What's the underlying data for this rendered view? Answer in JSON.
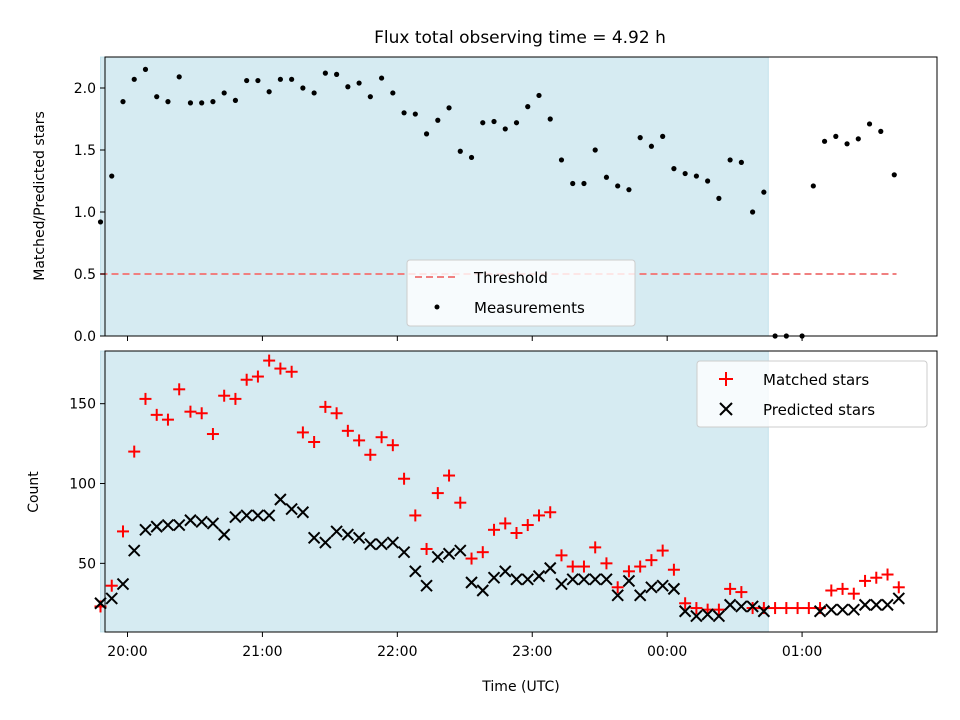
{
  "chart_data": [
    {
      "type": "scatter",
      "title": "Flux total observing time = 4.92 h",
      "xlabel": "",
      "ylabel": "Matched/Predicted stars",
      "xlim": [
        "19:50",
        "02:00"
      ],
      "ylim": [
        0,
        2.25
      ],
      "yticks": [
        "0.0",
        "0.5",
        "1.0",
        "1.5",
        "2.0"
      ],
      "shaded_range": [
        "19:48",
        "00:45"
      ],
      "legend": "lower-center",
      "threshold": {
        "name": "Threshold",
        "value": 0.5,
        "x": [
          "19:48",
          "01:42"
        ],
        "color": "#f08080"
      },
      "series": [
        {
          "name": "Measurements",
          "color": "#000000",
          "points": [
            [
              "19:48",
              0.92
            ],
            [
              "19:53",
              1.29
            ],
            [
              "19:58",
              1.89
            ],
            [
              "20:03",
              2.07
            ],
            [
              "20:08",
              2.15
            ],
            [
              "20:13",
              1.93
            ],
            [
              "20:18",
              1.89
            ],
            [
              "20:23",
              2.09
            ],
            [
              "20:28",
              1.88
            ],
            [
              "20:33",
              1.88
            ],
            [
              "20:38",
              1.89
            ],
            [
              "20:43",
              1.96
            ],
            [
              "20:48",
              1.9
            ],
            [
              "20:53",
              2.06
            ],
            [
              "20:58",
              2.06
            ],
            [
              "21:03",
              1.97
            ],
            [
              "21:08",
              2.07
            ],
            [
              "21:13",
              2.07
            ],
            [
              "21:18",
              2.0
            ],
            [
              "21:23",
              1.96
            ],
            [
              "21:28",
              2.12
            ],
            [
              "21:33",
              2.11
            ],
            [
              "21:38",
              2.01
            ],
            [
              "21:43",
              2.04
            ],
            [
              "21:48",
              1.93
            ],
            [
              "21:53",
              2.08
            ],
            [
              "21:58",
              1.96
            ],
            [
              "22:03",
              1.8
            ],
            [
              "22:08",
              1.79
            ],
            [
              "22:13",
              1.63
            ],
            [
              "22:18",
              1.74
            ],
            [
              "22:23",
              1.84
            ],
            [
              "22:28",
              1.49
            ],
            [
              "22:33",
              1.44
            ],
            [
              "22:38",
              1.72
            ],
            [
              "22:43",
              1.73
            ],
            [
              "22:48",
              1.67
            ],
            [
              "22:53",
              1.72
            ],
            [
              "22:58",
              1.85
            ],
            [
              "23:03",
              1.94
            ],
            [
              "23:08",
              1.75
            ],
            [
              "23:13",
              1.42
            ],
            [
              "23:18",
              1.23
            ],
            [
              "23:23",
              1.23
            ],
            [
              "23:28",
              1.5
            ],
            [
              "23:33",
              1.28
            ],
            [
              "23:38",
              1.21
            ],
            [
              "23:43",
              1.18
            ],
            [
              "23:48",
              1.6
            ],
            [
              "23:53",
              1.53
            ],
            [
              "23:58",
              1.61
            ],
            [
              "00:03",
              1.35
            ],
            [
              "00:08",
              1.31
            ],
            [
              "00:13",
              1.29
            ],
            [
              "00:18",
              1.25
            ],
            [
              "00:23",
              1.11
            ],
            [
              "00:28",
              1.42
            ],
            [
              "00:33",
              1.4
            ],
            [
              "00:38",
              1.0
            ],
            [
              "00:43",
              1.16
            ],
            [
              "00:48",
              0.0
            ],
            [
              "00:53",
              0.0
            ],
            [
              "01:00",
              0.0
            ],
            [
              "01:05",
              1.21
            ],
            [
              "01:10",
              1.57
            ],
            [
              "01:15",
              1.61
            ],
            [
              "01:20",
              1.55
            ],
            [
              "01:25",
              1.59
            ],
            [
              "01:30",
              1.71
            ],
            [
              "01:35",
              1.65
            ],
            [
              "01:41",
              1.3
            ]
          ]
        }
      ]
    },
    {
      "type": "scatter",
      "title": "",
      "xlabel": "Time (UTC)",
      "ylabel": "Count",
      "xlim": [
        "19:50",
        "02:00"
      ],
      "ylim": [
        7,
        183
      ],
      "yticks": [
        "50",
        "100",
        "150"
      ],
      "xticks": [
        "20:00",
        "21:00",
        "22:00",
        "23:00",
        "00:00",
        "01:00"
      ],
      "shaded_range": [
        "19:48",
        "00:45"
      ],
      "legend": "upper-right",
      "series": [
        {
          "name": "Matched stars",
          "color": "#ff0000",
          "marker": "+",
          "points": [
            [
              "19:48",
              23
            ],
            [
              "19:53",
              36
            ],
            [
              "19:58",
              70
            ],
            [
              "20:03",
              120
            ],
            [
              "20:08",
              153
            ],
            [
              "20:13",
              143
            ],
            [
              "20:18",
              140
            ],
            [
              "20:23",
              159
            ],
            [
              "20:28",
              145
            ],
            [
              "20:33",
              144
            ],
            [
              "20:38",
              131
            ],
            [
              "20:43",
              155
            ],
            [
              "20:48",
              153
            ],
            [
              "20:53",
              165
            ],
            [
              "20:58",
              167
            ],
            [
              "21:03",
              177
            ],
            [
              "21:08",
              172
            ],
            [
              "21:13",
              170
            ],
            [
              "21:18",
              132
            ],
            [
              "21:23",
              126
            ],
            [
              "21:28",
              148
            ],
            [
              "21:33",
              144
            ],
            [
              "21:38",
              133
            ],
            [
              "21:43",
              127
            ],
            [
              "21:48",
              118
            ],
            [
              "21:53",
              129
            ],
            [
              "21:58",
              124
            ],
            [
              "22:03",
              103
            ],
            [
              "22:08",
              80
            ],
            [
              "22:13",
              59
            ],
            [
              "22:18",
              94
            ],
            [
              "22:23",
              105
            ],
            [
              "22:28",
              88
            ],
            [
              "22:33",
              53
            ],
            [
              "22:38",
              57
            ],
            [
              "22:43",
              71
            ],
            [
              "22:48",
              75
            ],
            [
              "22:53",
              69
            ],
            [
              "22:58",
              74
            ],
            [
              "23:03",
              80
            ],
            [
              "23:08",
              82
            ],
            [
              "23:13",
              55
            ],
            [
              "23:18",
              48
            ],
            [
              "23:23",
              48
            ],
            [
              "23:28",
              60
            ],
            [
              "23:33",
              50
            ],
            [
              "23:38",
              35
            ],
            [
              "23:43",
              45
            ],
            [
              "23:48",
              48
            ],
            [
              "23:53",
              52
            ],
            [
              "23:58",
              58
            ],
            [
              "00:03",
              46
            ],
            [
              "00:08",
              25
            ],
            [
              "00:13",
              22
            ],
            [
              "00:18",
              21
            ],
            [
              "00:23",
              21
            ],
            [
              "00:28",
              34
            ],
            [
              "00:33",
              32
            ],
            [
              "00:38",
              22
            ],
            [
              "00:43",
              22
            ],
            [
              "00:48",
              22
            ],
            [
              "00:53",
              22
            ],
            [
              "00:58",
              22
            ],
            [
              "01:03",
              22
            ],
            [
              "01:08",
              22
            ],
            [
              "01:13",
              33
            ],
            [
              "01:18",
              34
            ],
            [
              "01:23",
              31
            ],
            [
              "01:28",
              39
            ],
            [
              "01:33",
              41
            ],
            [
              "01:38",
              43
            ],
            [
              "01:43",
              35
            ]
          ]
        },
        {
          "name": "Predicted stars",
          "color": "#000000",
          "marker": "x",
          "points": [
            [
              "19:48",
              25
            ],
            [
              "19:53",
              28
            ],
            [
              "19:58",
              37
            ],
            [
              "20:03",
              58
            ],
            [
              "20:08",
              71
            ],
            [
              "20:13",
              73
            ],
            [
              "20:18",
              74
            ],
            [
              "20:23",
              74
            ],
            [
              "20:28",
              77
            ],
            [
              "20:33",
              76
            ],
            [
              "20:38",
              75
            ],
            [
              "20:43",
              68
            ],
            [
              "20:48",
              79
            ],
            [
              "20:53",
              80
            ],
            [
              "20:58",
              80
            ],
            [
              "21:03",
              80
            ],
            [
              "21:08",
              90
            ],
            [
              "21:13",
              84
            ],
            [
              "21:18",
              82
            ],
            [
              "21:23",
              66
            ],
            [
              "21:28",
              63
            ],
            [
              "21:33",
              70
            ],
            [
              "21:38",
              68
            ],
            [
              "21:43",
              66
            ],
            [
              "21:48",
              62
            ],
            [
              "21:53",
              62
            ],
            [
              "21:58",
              63
            ],
            [
              "22:03",
              57
            ],
            [
              "22:08",
              45
            ],
            [
              "22:13",
              36
            ],
            [
              "22:18",
              54
            ],
            [
              "22:23",
              56
            ],
            [
              "22:28",
              58
            ],
            [
              "22:33",
              38
            ],
            [
              "22:38",
              33
            ],
            [
              "22:43",
              41
            ],
            [
              "22:48",
              45
            ],
            [
              "22:53",
              40
            ],
            [
              "22:58",
              40
            ],
            [
              "23:03",
              42
            ],
            [
              "23:08",
              47
            ],
            [
              "23:13",
              37
            ],
            [
              "23:18",
              40
            ],
            [
              "23:23",
              40
            ],
            [
              "23:28",
              40
            ],
            [
              "23:33",
              40
            ],
            [
              "23:38",
              30
            ],
            [
              "23:43",
              39
            ],
            [
              "23:48",
              30
            ],
            [
              "23:53",
              35
            ],
            [
              "23:58",
              36
            ],
            [
              "00:03",
              34
            ],
            [
              "00:08",
              20
            ],
            [
              "00:13",
              17
            ],
            [
              "00:18",
              18
            ],
            [
              "00:23",
              17
            ],
            [
              "00:28",
              24
            ],
            [
              "00:33",
              23
            ],
            [
              "00:38",
              23
            ],
            [
              "00:43",
              20
            ],
            [
              "01:08",
              20
            ],
            [
              "01:13",
              21
            ],
            [
              "01:18",
              21
            ],
            [
              "01:23",
              21
            ],
            [
              "01:28",
              24
            ],
            [
              "01:33",
              24
            ],
            [
              "01:38",
              24
            ],
            [
              "01:43",
              28
            ]
          ]
        }
      ]
    }
  ]
}
